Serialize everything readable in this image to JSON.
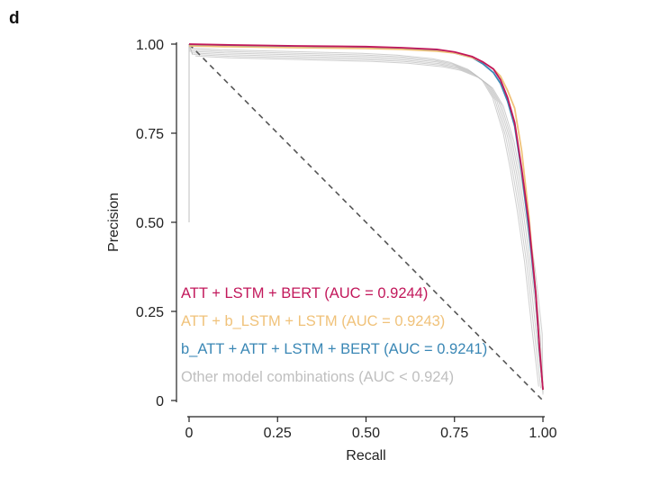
{
  "panel_label": "d",
  "chart_data": {
    "type": "line",
    "xlabel": "Recall",
    "ylabel": "Precision",
    "xlim": [
      0,
      1
    ],
    "ylim": [
      0,
      1
    ],
    "x_ticks": [
      0,
      0.25,
      0.5,
      0.75,
      1.0
    ],
    "x_tick_labels": [
      "0",
      "0.25",
      "0.50",
      "0.75",
      "1.00"
    ],
    "y_ticks": [
      0,
      0.25,
      0.5,
      0.75,
      1.0
    ],
    "y_tick_labels": [
      "0",
      "0.25",
      "0.50",
      "0.75",
      "1.00"
    ],
    "grid": false,
    "legend_position": "bottom-left",
    "series": [
      {
        "name": "ATT + LSTM + BERT (AUC = 0.9244)",
        "color": "#c2185b",
        "x": [
          0,
          0.1,
          0.3,
          0.5,
          0.6,
          0.7,
          0.75,
          0.8,
          0.83,
          0.86,
          0.88,
          0.9,
          0.92,
          0.94,
          0.96,
          0.98,
          0.99,
          1.0
        ],
        "y": [
          1.0,
          0.998,
          0.995,
          0.993,
          0.99,
          0.985,
          0.978,
          0.965,
          0.95,
          0.93,
          0.9,
          0.85,
          0.78,
          0.65,
          0.5,
          0.3,
          0.15,
          0.03
        ]
      },
      {
        "name": "ATT + b_LSTM + LSTM (AUC = 0.9243)",
        "color": "#f0c27a",
        "x": [
          0,
          0.1,
          0.3,
          0.5,
          0.6,
          0.7,
          0.75,
          0.8,
          0.83,
          0.86,
          0.88,
          0.9,
          0.92,
          0.94,
          0.96,
          0.98,
          0.99,
          1.0
        ],
        "y": [
          0.995,
          0.993,
          0.99,
          0.988,
          0.985,
          0.98,
          0.975,
          0.962,
          0.95,
          0.93,
          0.91,
          0.87,
          0.82,
          0.7,
          0.52,
          0.3,
          0.15,
          0.03
        ]
      },
      {
        "name": "b_ATT + ATT + LSTM + BERT (AUC = 0.9241)",
        "color": "#3a87b5",
        "x": [
          0,
          0.1,
          0.3,
          0.5,
          0.6,
          0.7,
          0.75,
          0.8,
          0.83,
          0.86,
          0.88,
          0.9,
          0.92,
          0.94,
          0.96,
          0.98,
          0.99,
          1.0
        ],
        "y": [
          0.998,
          0.996,
          0.994,
          0.992,
          0.988,
          0.983,
          0.975,
          0.962,
          0.945,
          0.92,
          0.89,
          0.84,
          0.77,
          0.64,
          0.48,
          0.29,
          0.14,
          0.03
        ]
      },
      {
        "name": "Other model combinations (AUC < 0.924)",
        "color": "#bfbfbf",
        "x": [
          0,
          0.1,
          0.3,
          0.5,
          0.6,
          0.7,
          0.75,
          0.8,
          0.84,
          0.87,
          0.9,
          0.92,
          0.94,
          0.96,
          0.98,
          1.0
        ],
        "y": [
          0.98,
          0.975,
          0.97,
          0.965,
          0.96,
          0.95,
          0.94,
          0.92,
          0.89,
          0.84,
          0.74,
          0.64,
          0.52,
          0.38,
          0.2,
          0.03
        ]
      }
    ],
    "diagonal_reference": {
      "x": [
        0,
        1
      ],
      "y": [
        1,
        0
      ],
      "color": "#555555",
      "style": "dashed"
    }
  }
}
